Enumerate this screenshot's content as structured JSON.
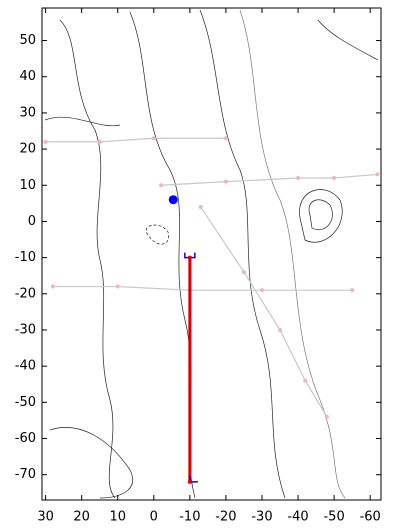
{
  "chart_data": {
    "type": "line",
    "xlim": [
      31,
      -63
    ],
    "ylim": [
      -77,
      59
    ],
    "xticks": [
      30,
      20,
      10,
      0,
      -10,
      -20,
      -30,
      -40,
      -50,
      -60
    ],
    "yticks": [
      50,
      40,
      30,
      20,
      10,
      0,
      -10,
      -20,
      -30,
      -40,
      -50,
      -60,
      -70
    ],
    "series": [
      {
        "color": "#c8c8c8",
        "dots": "#f4b4b4",
        "x": [
          30,
          15,
          0,
          -20
        ],
        "values": [
          22,
          22,
          23,
          23
        ]
      },
      {
        "color": "#c8c8c8",
        "dots": "#f4b4b4",
        "x": [
          -2,
          -20,
          -40,
          -50,
          -62
        ],
        "values": [
          10,
          11,
          12,
          12,
          13
        ]
      },
      {
        "color": "#c8c8c8",
        "dots": "#f4b4b4",
        "x": [
          -13,
          -25,
          -35,
          -42,
          -48
        ],
        "values": [
          4,
          -14,
          -30,
          -44,
          -54
        ]
      },
      {
        "color": "#c8c8c8",
        "dots": "#f4b4b4",
        "x": [
          28,
          10,
          -10,
          -30,
          -55
        ],
        "values": [
          -18,
          -18,
          -19,
          -19,
          -19
        ]
      },
      {
        "color": "#e00000",
        "dots": "#e00000",
        "x": [
          -10,
          -10
        ],
        "values": [
          -10,
          -72
        ]
      },
      {
        "color": "#0000ff",
        "dots": "#0000ff",
        "x": [
          -5.4
        ],
        "values": [
          6
        ]
      }
    ]
  }
}
